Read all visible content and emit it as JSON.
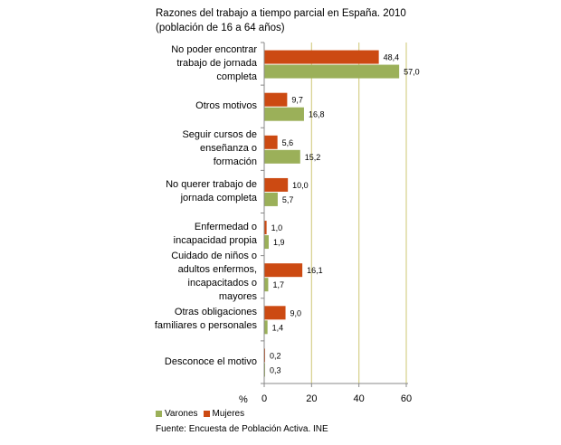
{
  "chart_data": {
    "type": "bar",
    "orientation": "horizontal",
    "title": "Razones del trabajo a tiempo parcial en España. 2010",
    "subtitle": "(población de 16 a 64 años)",
    "categories": [
      "No poder encontrar\ntrabajo de jornada\ncompleta",
      "Otros motivos",
      "Seguir cursos de\nenseñanza o\nformación",
      "No querer trabajo de\njornada completa",
      "Enfermedad o\nincapacidad propia",
      "Cuidado de niños o\nadultos enfermos,\nincapacitados o\nmayores",
      "Otras obligaciones\nfamiliares o personales",
      "Desconoce el motivo"
    ],
    "series": [
      {
        "name": "Mujeres",
        "color": "#cc4a12",
        "values": [
          48.4,
          9.7,
          5.6,
          10.0,
          1.0,
          16.1,
          9.0,
          0.2
        ],
        "labels": [
          "48,4",
          "9,7",
          "5,6",
          "10,0",
          "1,0",
          "16,1",
          "9,0",
          "0,2"
        ]
      },
      {
        "name": "Varones",
        "color": "#9bb059",
        "values": [
          57.0,
          16.8,
          15.2,
          5.7,
          1.9,
          1.7,
          1.4,
          0.3
        ],
        "labels": [
          "57,0",
          "16,8",
          "15,2",
          "5,7",
          "1,9",
          "1,7",
          "1,4",
          "0,3"
        ]
      }
    ],
    "xlim": [
      0,
      60
    ],
    "xticks": [
      0,
      20,
      40,
      60
    ],
    "xtick_labels": [
      "0",
      "20",
      "40",
      "60"
    ],
    "unit_label": "%",
    "gridline_color": "#d6d08a",
    "legend_position": "bottom-left",
    "source": "Fuente: Encuesta de Población Activa. INE"
  }
}
